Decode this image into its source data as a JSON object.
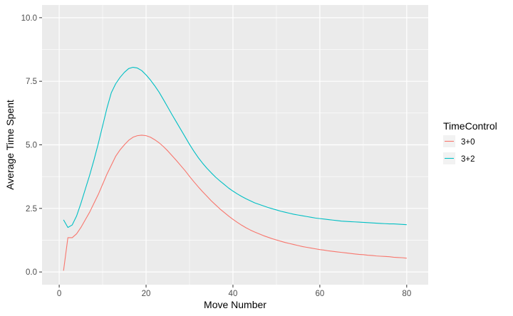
{
  "chart_data": {
    "type": "line",
    "title": "",
    "xlabel": "Move Number",
    "ylabel": "Average Time Spent",
    "xlim": [
      -3.95,
      84.95
    ],
    "ylim": [
      -0.5,
      10.5
    ],
    "x_ticks": [
      0,
      20,
      40,
      60,
      80
    ],
    "y_ticks": [
      0.0,
      2.5,
      5.0,
      7.5,
      10.0
    ],
    "x_tick_labels": [
      "0",
      "20",
      "40",
      "60",
      "80"
    ],
    "y_tick_labels": [
      "0.0",
      "2.5",
      "5.0",
      "7.5",
      "10.0"
    ],
    "grid": true,
    "legend": {
      "title": "TimeControl",
      "position": "right"
    },
    "series": [
      {
        "name": "3+0",
        "color": "#F8766D",
        "x": [
          1,
          2,
          3,
          4,
          5,
          6,
          7,
          8,
          9,
          10,
          11,
          12,
          13,
          14,
          15,
          16,
          17,
          18,
          19,
          20,
          21,
          22,
          23,
          24,
          25,
          26,
          27,
          28,
          29,
          30,
          31,
          32,
          33,
          34,
          35,
          36,
          37,
          38,
          39,
          40,
          41,
          42,
          43,
          44,
          45,
          46,
          47,
          48,
          49,
          50,
          51,
          52,
          53,
          54,
          55,
          56,
          57,
          58,
          59,
          60,
          61,
          62,
          63,
          64,
          65,
          66,
          67,
          68,
          69,
          70,
          71,
          72,
          73,
          74,
          75,
          76,
          77,
          78,
          79,
          80
        ],
        "y": [
          0.05,
          1.35,
          1.35,
          1.5,
          1.75,
          2.05,
          2.35,
          2.7,
          3.05,
          3.45,
          3.85,
          4.2,
          4.55,
          4.8,
          5.0,
          5.18,
          5.3,
          5.36,
          5.38,
          5.36,
          5.3,
          5.2,
          5.08,
          4.93,
          4.76,
          4.57,
          4.38,
          4.18,
          3.98,
          3.76,
          3.55,
          3.35,
          3.16,
          2.98,
          2.8,
          2.64,
          2.48,
          2.34,
          2.2,
          2.07,
          1.95,
          1.84,
          1.74,
          1.65,
          1.57,
          1.5,
          1.43,
          1.37,
          1.31,
          1.26,
          1.21,
          1.16,
          1.12,
          1.08,
          1.04,
          1.0,
          0.97,
          0.94,
          0.91,
          0.88,
          0.86,
          0.83,
          0.81,
          0.79,
          0.77,
          0.75,
          0.73,
          0.71,
          0.69,
          0.68,
          0.66,
          0.65,
          0.63,
          0.62,
          0.61,
          0.6,
          0.58,
          0.57,
          0.56,
          0.54
        ]
      },
      {
        "name": "3+2",
        "color": "#00BFC4",
        "x": [
          1,
          2,
          3,
          4,
          5,
          6,
          7,
          8,
          9,
          10,
          11,
          12,
          13,
          14,
          15,
          16,
          17,
          18,
          19,
          20,
          21,
          22,
          23,
          24,
          25,
          26,
          27,
          28,
          29,
          30,
          31,
          32,
          33,
          34,
          35,
          36,
          37,
          38,
          39,
          40,
          41,
          42,
          43,
          44,
          45,
          46,
          47,
          48,
          49,
          50,
          51,
          52,
          53,
          54,
          55,
          56,
          57,
          58,
          59,
          60,
          61,
          62,
          63,
          64,
          65,
          66,
          67,
          68,
          69,
          70,
          71,
          72,
          73,
          74,
          75,
          76,
          77,
          78,
          79,
          80
        ],
        "y": [
          2.05,
          1.75,
          1.85,
          2.2,
          2.7,
          3.25,
          3.8,
          4.4,
          5.05,
          5.75,
          6.45,
          7.05,
          7.4,
          7.65,
          7.85,
          8.0,
          8.05,
          8.02,
          7.92,
          7.75,
          7.55,
          7.32,
          7.07,
          6.78,
          6.48,
          6.18,
          5.89,
          5.6,
          5.31,
          5.02,
          4.75,
          4.5,
          4.28,
          4.08,
          3.9,
          3.73,
          3.58,
          3.44,
          3.3,
          3.18,
          3.07,
          2.97,
          2.88,
          2.8,
          2.72,
          2.66,
          2.6,
          2.54,
          2.49,
          2.44,
          2.39,
          2.35,
          2.31,
          2.27,
          2.24,
          2.21,
          2.18,
          2.15,
          2.12,
          2.1,
          2.08,
          2.06,
          2.04,
          2.02,
          2.0,
          1.99,
          1.98,
          1.97,
          1.96,
          1.95,
          1.94,
          1.93,
          1.92,
          1.91,
          1.9,
          1.89,
          1.89,
          1.88,
          1.87,
          1.86
        ]
      }
    ]
  }
}
